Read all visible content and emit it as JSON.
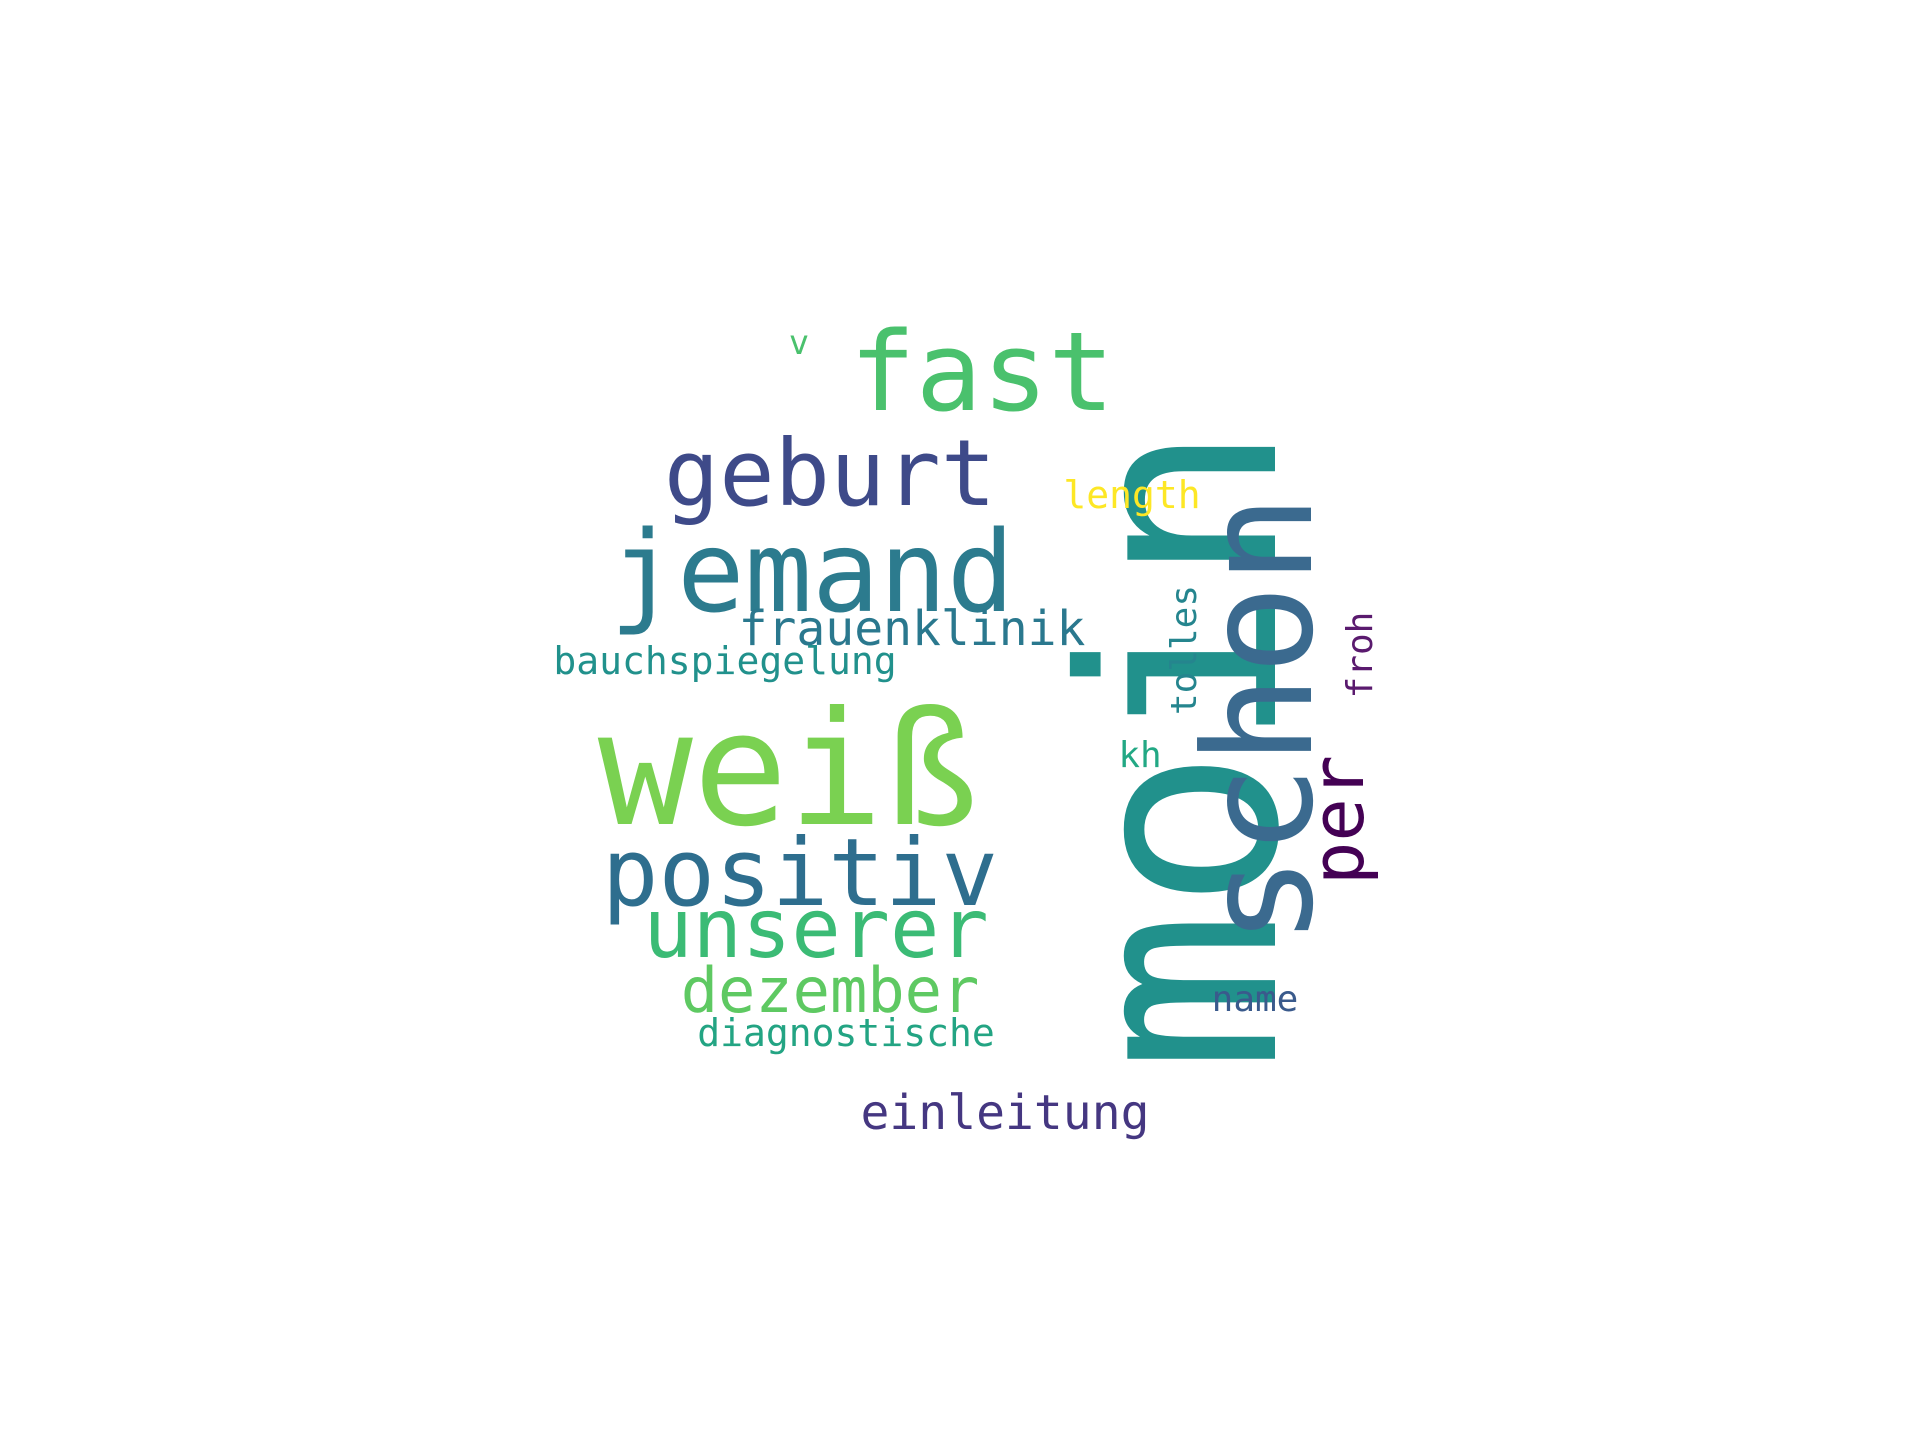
{
  "cloud": {
    "words": {
      "moin": {
        "text": "moin",
        "color": "#21918c"
      },
      "schon": {
        "text": "schon",
        "color": "#3b6a8f"
      },
      "weiss": {
        "text": "weiß",
        "color": "#7ad151"
      },
      "jemand": {
        "text": "jemand",
        "color": "#2c7b8e"
      },
      "fast": {
        "text": "fast",
        "color": "#4ac16d"
      },
      "geburt": {
        "text": "geburt",
        "color": "#3e4a89"
      },
      "positiv": {
        "text": "positiv",
        "color": "#2e6e8e"
      },
      "unserer": {
        "text": "unserer",
        "color": "#3bbb75"
      },
      "dezember": {
        "text": "dezember",
        "color": "#5ec962"
      },
      "per": {
        "text": "per",
        "color": "#440154"
      },
      "frauenklinik": {
        "text": "frauenklinik",
        "color": "#2a788e"
      },
      "einleitung": {
        "text": "einleitung",
        "color": "#453781"
      },
      "bauchspiegelung": {
        "text": "bauchspiegelung",
        "color": "#21918c"
      },
      "diagnostische": {
        "text": "diagnostische",
        "color": "#23a483"
      },
      "length": {
        "text": "length",
        "color": "#fde725"
      },
      "tolles": {
        "text": "tolles",
        "color": "#25858e"
      },
      "froh": {
        "text": "froh",
        "color": "#5a1a6e"
      },
      "kh": {
        "text": "kh",
        "color": "#22a884"
      },
      "name": {
        "text": "name",
        "color": "#3a5a8c"
      },
      "v": {
        "text": "v",
        "color": "#4ac16d"
      }
    }
  }
}
